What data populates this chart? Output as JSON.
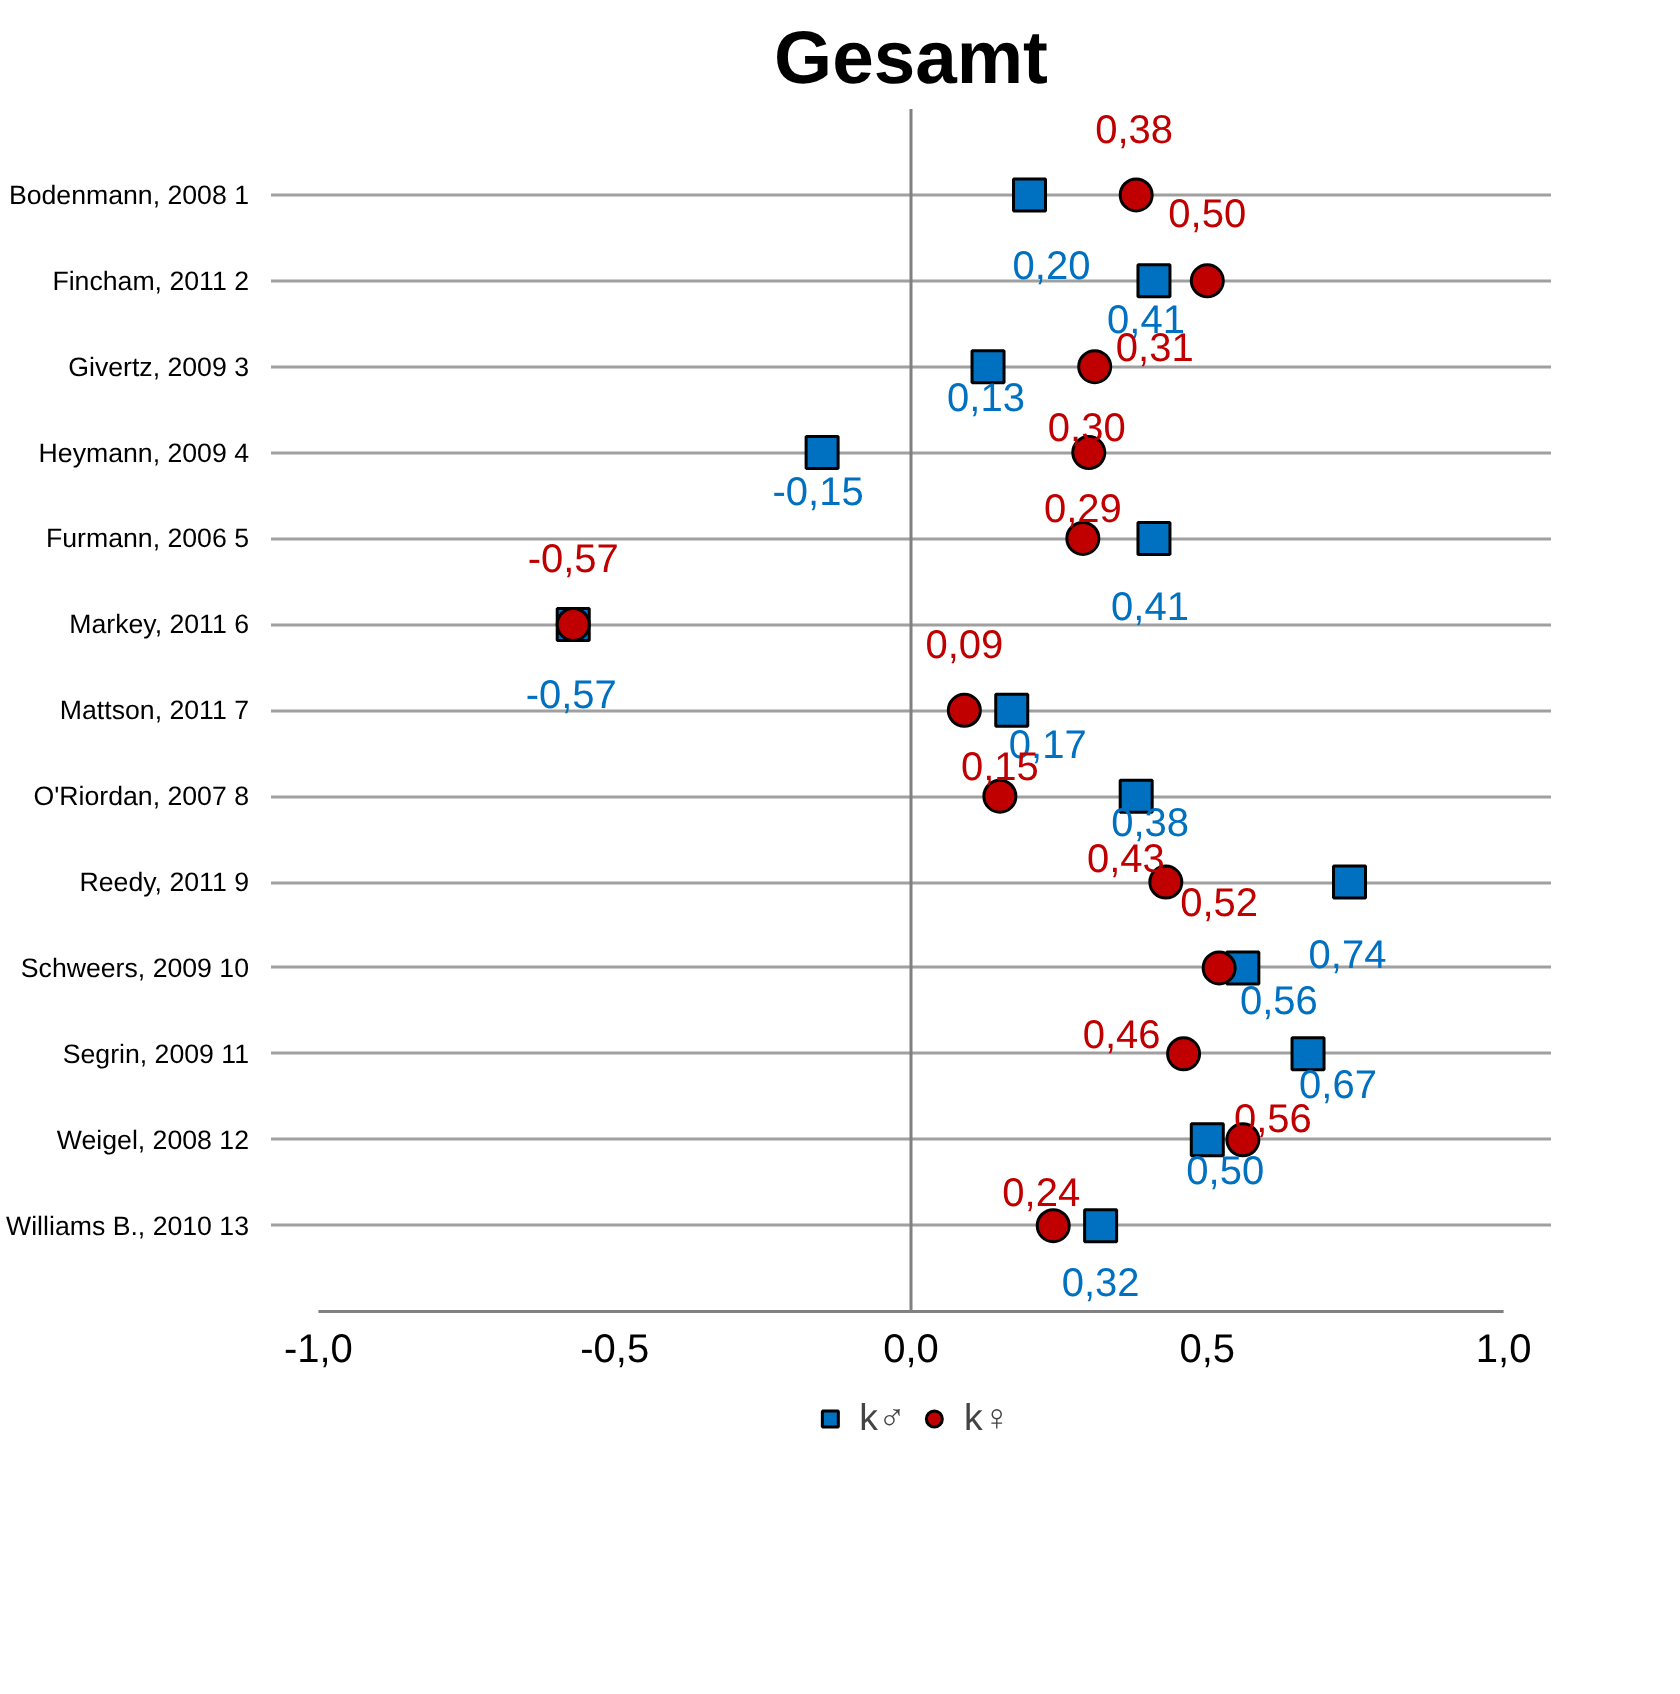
{
  "chart_data": {
    "type": "scatter",
    "title": "Gesamt",
    "categories": [
      "Bodenmann, 2008 1",
      "Fincham, 2011 2",
      "Givertz, 2009 3",
      "Heymann, 2009 4",
      "Furmann, 2006 5",
      "Markey, 2011 6",
      "Mattson, 2011 7",
      "O'Riordan, 2007 8",
      "Reedy, 2011 9",
      "Schweers, 2009 10",
      "Segrin, 2009 11",
      "Weigel, 2008 12",
      "Williams B., 2010 13"
    ],
    "orientation": "horizontal",
    "series": [
      {
        "name": "k♂",
        "color": "#0070c0",
        "marker": "square",
        "values": [
          0.2,
          0.41,
          0.13,
          -0.15,
          0.41,
          -0.57,
          0.17,
          0.38,
          0.74,
          0.56,
          0.67,
          0.5,
          0.32
        ],
        "value_labels": [
          "0,20",
          "0,41",
          "0,13",
          "-0,15",
          "0,41",
          "-0,57",
          "0,17",
          "0,38",
          "0,74",
          "0,56",
          "0,67",
          "0,50",
          "0,32"
        ]
      },
      {
        "name": "k♀",
        "color": "#c00000",
        "marker": "circle",
        "values": [
          0.38,
          0.5,
          0.31,
          0.3,
          0.29,
          -0.57,
          0.09,
          0.15,
          0.43,
          0.52,
          0.46,
          0.56,
          0.24
        ],
        "value_labels": [
          "0,38",
          "0,50",
          "0,31",
          "0,30",
          "0,29",
          "-0,57",
          "0,09",
          "0,15",
          "0,43",
          "0,52",
          "0,46",
          "0,56",
          "0,24"
        ]
      }
    ],
    "xlim": [
      -1.0,
      1.0
    ],
    "xticks": [
      {
        "value": -1.0,
        "label": "-1,0"
      },
      {
        "value": -0.5,
        "label": "-0,5"
      },
      {
        "value": 0.0,
        "label": "0,0"
      },
      {
        "value": 0.5,
        "label": "0,5"
      },
      {
        "value": 1.0,
        "label": "1,0"
      }
    ],
    "ref_lines": [
      {
        "axis": "x",
        "value": 0.0,
        "color": "#808080"
      }
    ],
    "grid": "y",
    "legend": "bottom"
  }
}
